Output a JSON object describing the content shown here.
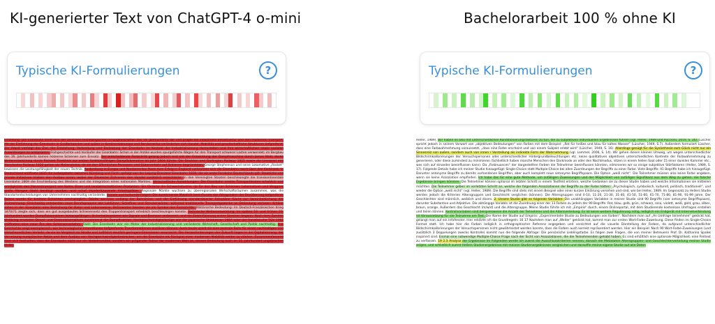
{
  "left": {
    "title": "KI-generierter Text von ChatGPT-4 o-mini",
    "card": {
      "heading": "Typische KI-Formulierungen",
      "help_icon": "help-icon",
      "heat_cells": [
        "#ffffff",
        "#f6d6d6",
        "#ffffff",
        "#f2c0c0",
        "#ffffff",
        "#f7d3d3",
        "#ffffff",
        "#f5cbcb",
        "#eeaaaa",
        "#ffffff",
        "#f3c6c6",
        "#ffffff",
        "#f9dcdc",
        "#ea8f8f",
        "#ffffff",
        "#f4c8c8",
        "#ffffff",
        "#e77d7d",
        "#f7d7d7",
        "#ffffff",
        "#e33b3b",
        "#f6d0d0",
        "#ffffff",
        "#d92020",
        "#f3c2c2",
        "#ffffff",
        "#f1bdbd",
        "#e56b6b",
        "#ffffff",
        "#f4caca",
        "#ffffff",
        "#f7d8d8",
        "#e44848",
        "#ffffff",
        "#f0b6b6",
        "#ffffff",
        "#f5cdcd",
        "#e25a5a",
        "#ffffff",
        "#f3c5c5",
        "#ffffff",
        "#ef4545",
        "#f8d9d9",
        "#ffffff",
        "#f2bfbf",
        "#ffffff",
        "#eb9d9d",
        "#ffffff",
        "#f6d2d2",
        "#e04040",
        "#ffffff",
        "#f4c9c9",
        "#ffffff",
        "#f7d6d6",
        "#ffffff",
        "#ee6060",
        "#f5cccc",
        "#ffffff",
        "#f1bbbb",
        "#ffffff"
      ]
    },
    "doc_segments": [
      {
        "c": "red",
        "t": "Einleitung: Die Eisenbahn stellt eine der zentralen technologischen Errungenschaften des 19. Jahrhunderts dar und prägte die industrielle Infrastruktur und den modernen Transport. Mit der Einführung der Eisenbahn in Großbritannien und später in Kontinentaleuropa und Nordamerika veränderten sich Handel, Mobilität und gesellschaftliche Strukturen tiefgreifend. Die Arbeit verfolgt das Ziel, die Entstehung, Verbreitung und Bedeutung der Eisenbahn im Kontext der Industrialisierung darzustellen und ihre wirtschaftlichen sowie sozialen Auswirkungen zu analysieren. "
      },
      {
        "c": "pink",
        "t": "Frühgeschichte und Vorläufer der Eisenbahn: Schon in der Antike wurden spurgeführte Wagen für den Transport schwerer Lasten verwendet; im Bergbau des 16. Jahrhunderts kamen hölzerne Schienen zum Einsatz. "
      },
      {
        "c": "red",
        "t": "Der entscheidende Fortschritt gelang jedoch erst mit der Entwicklung der Dampfmaschine durch James Watt, deren Weiterentwicklung durch Richard Trevithick zur ersten funktionsfähigen Dampflokomotive im Jahr 1804 führte. Die Stockton and Darlington Railway 1825 sowie die Liverpool and Manchester Railway 1830 gelten als Meilensteine, da sie den öffentlichen Personen- und Güterverkehr auf Schienen begründeten. "
      },
      {
        "c": "none",
        "t": "George Stephenson und seine Lokomotive „Rocket“ bewiesen die Leistungsfähigkeit der neuen Technik. "
      },
      {
        "c": "red",
        "t": "Ausbreitung in Europa und Nordamerika: Nach dem Erfolg in England verbreitete sich die Eisenbahn rasch über den Kontinent. In Deutschland eröffnete 1835 die Ludwigsbahn zwischen Nürnberg und Fürth, gefolgt von der Leipzig-Dresdner Eisenbahn 1839, die als erste Fernbahn Deutschlands gilt. Staatliche und private Initiativen trieben den Ausbau voran, wobei der Deutsche Zollverein den Handel zusätzlich erleichterte. "
      },
      {
        "c": "pink",
        "t": "In den Vereinigten Staaten beschleunigte die transkontinentale Eisenbahn 1869 die Erschließung des Westens und die Integration eines nationalen Marktes. "
      },
      {
        "c": "red",
        "t": "Wirtschaftliche Auswirkungen: Die Eisenbahn senkte Transportkosten erheblich und ermöglichte den Massentransport von Kohle, Eisen und landwirtschaftlichen Produkten. Sie förderte die Schwerindustrie, da für den Bau von Schienen, Lokomotiven und Waggons große Mengen Stahl benötigt wurden, und schuf Hunderttausende Arbeitsplätze. "
      },
      {
        "c": "none",
        "t": "Regionale Märkte wuchsen zu überregionalen Wirtschaftsräumen zusammen, was die Standortentscheidungen von Unternehmen nachhaltig veränderte. "
      },
      {
        "c": "red",
        "t": "Soziale und kulturelle Folgen: Die zunehmende Mobilität beeinflusste das Alltagsleben der Bevölkerung tiefgreifend. Reisen wurde für breitere Schichten erschwinglich, Städte wuchsen entlang der Bahnlinien, und die Einführung standardisierter Fahrpläne führte zur Vereinheitlichung der Zeitrechnung. Gleichzeitig entstanden neue Berufsgruppen wie Lokführer, Schaffner und Streckenwärter, während traditionelle Transportgewerbe an Bedeutung verloren. Kritiker sahen in der Eisenbahn eine Bedrohung für Natur und Lebensweise, Befürworter feierten sie als Symbol des Fortschritts. "
      },
      {
        "c": "pink",
        "t": "Militärische Bedeutung: Im Deutsch-Französischen Krieg 1870/71 zeigte sich, dass ein gut ausgebautes Schienennetz den Truppentransport erheblich beschleunigen konnte. "
      },
      {
        "c": "red",
        "t": "Technische Weiterentwicklung: Im späten 19. und frühen 20. Jahrhundert wurden Dampflokomotiven leistungsfähiger, Sicherheitssysteme wie Signale und Bremsen verbessert, und die Elektrifizierung erster Strecken begann. Nach dem Zweiten Weltkrieg ersetzten Diesel- und Elektrolokomotiven zunehmend die Dampftraktion. Hochgeschwindigkeitszüge wie der japanische Shinkansen 1964 oder der französische TGV 1981 eröffneten eine neue Ära des Schienenverkehrs. "
      },
      {
        "c": "green",
        "t": "Fazit: Die Eisenbahn war ein Motor der Industrialisierung und veränderte Wirtschaft, Gesellschaft und Politik nachhaltig. "
      },
      {
        "c": "red",
        "t": "Ihre Geschichte zeigt exemplarisch, wie technologische Innovationen tiefgreifende Transformationen auslösen können. Auch heute spielt sie eine zentrale Rolle für einen nachhaltigen und klimafreundlichen Verkehr, da sie im Vergleich zu Straße und Luftfahrt deutlich geringere Emissionen verursacht. Die Herausforderungen der Zukunft liegen in der Digitalisierung, der Vernetzung europäischer Netze und dem Ausbau von Hochgeschwindigkeitsstrecken, um die Eisenbahn als Rückgrat einer modernen Mobilität weiter zu stärken. Zusammenfassend lässt sich festhalten, dass die Eisenbahn nicht nur ein Verkehrsmittel, sondern ein prägender Faktor der modernen Welt ist, dessen Bedeutung auch im 21. Jahrhundert ungebrochen bleibt."
      }
    ]
  },
  "right": {
    "title": "Bachelorarbeit 100 % ohne KI",
    "card": {
      "heading": "Typische KI-Formulierungen",
      "help_icon": "help-icon",
      "heat_cells": [
        "#ffffff",
        "#d6f5cf",
        "#ffffff",
        "#9fea8c",
        "#ffffff",
        "#c8f2be",
        "#ffffff",
        "#5edc48",
        "#ffffff",
        "#b8eeab",
        "#ffffff",
        "#d2f4ca",
        "#3fd52a",
        "#ffffff",
        "#c3f1b8",
        "#ffffff",
        "#a6ec95",
        "#ffffff",
        "#dff7d9",
        "#ffffff",
        "#4cd838",
        "#ffffff",
        "#bdefb1",
        "#ffffff",
        "#8ee67a",
        "#ffffff",
        "#d8f6d1",
        "#ffffff",
        "#5fdc4b",
        "#ffffff",
        "#c6f2bb",
        "#ffffff",
        "#b1eda3",
        "#ffffff",
        "#e2f8dc",
        "#ffffff",
        "#2fd21a",
        "#ffffff",
        "#cdf3c3",
        "#ffffff",
        "#9deb8a",
        "#ffffff",
        "#d4f5cc",
        "#ffffff",
        "#6adf57",
        "#ffffff",
        "#c0f0b5",
        "#ffffff",
        "#e5f9df",
        "#ffffff",
        "#56da42",
        "#ffffff",
        "#caf3c0",
        "#ffffff",
        "#a2eb91",
        "#ffffff",
        "#dbf6d4",
        "#ffffff",
        "#ffffff",
        "#ffffff"
      ]
    },
    "doc_segments": [
      {
        "c": "none",
        "t": "Heller, 1989). "
      },
      {
        "c": "green",
        "t": "Wir haben es also mit unterschiedlichen Konditionierungsfaktoren zu tun, die zu subjektiven individuellen Ergebnissen führen (vgl. Heller, 1989 und Puccioni, 2019, S. 26). "
      },
      {
        "c": "none",
        "t": "Lüscher spricht jedoch in seinem Vorwort von „objektiven Bedeutungen“ von Farben mit dem Beispiel: „Rot für heißes und blau für kaltes Wasser“ (Lüscher, 1949, S.7). Außerdem formuliert Lüscher, dass eine Farbwahrnehmung voraussetzt, „dass eine Farbe erscheint und von einem Subjekt erlebt wird“ (Lüscher, 1949, S. 16). "
      },
      {
        "c": "yellow",
        "t": "Allerdings genügt für die Synästhesie zum Glück nicht nur ein Sinnesreiz von außen, sondern auch von innen / Vorstellung als indirekte Form der Wahrnehmung "
      },
      {
        "c": "none",
        "t": "(vgl. Lommel, 2006, S. 14). Wir gehen diesen kleinen Umweg, um wegen unterschiedlicher Bildschirmkalibrierungen der Versuchspersonen oder unterschiedlicher Hintergrundbeleuchtungen etc. keine qualitativen objektiven unterschiedlichen Kontexte der Farbwahrnehmung zu generieren, oder diese zumindest zu minimieren (Schließlich haben manche Menschen den Darkmode an oder den Nachtmodus, sitzen in einem hellen Saal oder 15 einer dunklen Kammer etc., was sich auf einander beeinflussen kann). Da „Farbnuancen“ der dargestellten Farben die Teilnehmer beeinflussen könnten, eliminieren wir so einige subjektive Störfaktoren (Heller, 1989, S. 17). Folgende Details habe ich meiner Studie hinzugefügt: Single-Choice statt Multiple-Choice bei allen Zuordnungen der Begriffe zu einer Farbe. Viele Begriffe: 41 Begriffe habe ich hinzugefügt. Darunter antonyme Begriffe zu bereits vorhandenen Begriffen, aber auch komplett neue antonyme Begriffspaare. Die Option „weiß nicht“. Die Teilnehmer müssen also keine Farbe angeben, wenn sie keine Assoziation empfinden. "
      },
      {
        "c": "green",
        "t": "Ich habe das für eine gute Methode, um zufälligen Zuweisungen und der Möglichkeit von zufälliger Signifikanz aus dem Weg zu gehen, die falsche Ergebnisse bringen könnten. "
      },
      {
        "c": "none",
        "t": "Die Teilnehmer können optional im letzten Schritt in einem Textfeld erörtern, welche Gedanken sie zu dieser Studie haben und welche Informationen sie mitteilen möchten. "
      },
      {
        "c": "lgreen",
        "t": "Die Teilnehmer geben im vorletzten Schritt an, welche der folgenden Assoziationen der Begriffe zu der Farbe hätten: "
      },
      {
        "c": "none",
        "t": "„Psychologisch, symbolisch, kulturell, politisch, traditionell“, und wieder die Option „weiß nicht“ (vgl. Heller, 1989). Die Begriffe sind stets mit einem Beispiel oder einer kurzen Erklärung versehen und sind, wie bei Heller, 1989. Im Gegensatz zu Hellers Studie werden jedoch die Kriterien Altersgruppen und Geschlecht verglichen (können). Die Altersgruppen sind 0-10, 11-20, 21-30, 31-40, 41-50, 51-60, 61-70, 71-80, 81-90, 91-99 Jahre. Der Geschlechter sind männlich, weiblich und divers. "
      },
      {
        "c": "yellow",
        "t": "2. Unsere Studie gibt es folgende Variablen: "
      },
      {
        "c": "none",
        "t": "Die unabhängigen Variablen in meiner Studie sind 90 Begriffe (vier antonyme Begriffspaare), darunter Substantive und Adjektive. Die abhängige Variable ist die Zuordnung einer der 13 Farben zu jedem der 90 Begriffe: Rot, blau, gelb, grün, schwarz, rosa, violett, weiß, gold, grau, silber, braun, orange. Außerdem das Geschlecht (m/w/d) und die Altersgruppe. Meine Studie führte ich mit „Empirio“ durch, einem Onlineportal, mit dem Studierende kostenlose Umfragen erstellen und teilen können. "
      },
      {
        "c": "green",
        "t": "Kontrollvariablen sind beispielsweise die Anzahl der Teilnehmer und die Altersverteilung. Es ist keine weitere Regulierung nötig, lediglich ein Endgerät mit Internetverbindung ist Voraussetzung für die Teilnahme am Test. "
      },
      {
        "c": "none",
        "t": "Der Name der Studie auf Empirio: „Experimentelle Studie zu Bedeutungen von Farben“. Nachdem man auf „An Umfrage teilnehmen“ geklickt hat, gelangt man auf ein Infofenster. Hier erklärte ich die Grundregeln: 16 17 Nachdem man auf „Weiter“ geklickt hat, kommt man zur ersten Wort-Farbe-Zuweisung. Diese finden im Single-Choice Format statt. Ich habe hier die Farben lediglich in orthographischer Referenz angegeben und verzichtet auf die visuelle Darstellung der Farben, da aufgrund unterschiedlicher Bildschirmkalibrierungen der Versuchspersonen nicht gewährleistet werden konnte, dass die Farben auch korrekt repräsentiert werden. Hier ein Beispiel: Nach 90 Wort-Farbe-Zuweisungen (und zusätzlich 3 Doppelungen zwecks Kontrolle) kommt nun die folgende Abfrage: Die persönliche Lieblingsfarbe. Es folgen zwei Fragen, die von meiner Betreuerin Prof. Dr. Katharina Spalek inspiriert sind. "
      },
      {
        "c": "lgreen",
        "t": "Einmal eine notwendige Multiple-Choice Frage nach der Sicht von Assoziationen, die die Teilnehmenden gehabt haben. "
      },
      {
        "c": "none",
        "t": "Es sind erhältlich eine optionale Möglichkeit, eine Freitext zu verfassen. "
      },
      {
        "c": "yellow",
        "t": "19 2.3 Analyse "
      },
      {
        "c": "green",
        "t": "der Ergebnisse Im Folgenden werde ich zuerst die Ausschlusskriterien nennen, danach die Metadaten Altersgruppen- und Geschlechterverteilung meiner Studie zeigen, und schließlich zuerst Hellers Studienergebnisse mit meinen Studienergebnissen vergleichen und darauffin meine eigene Studie auf alle Daten"
      }
    ]
  }
}
